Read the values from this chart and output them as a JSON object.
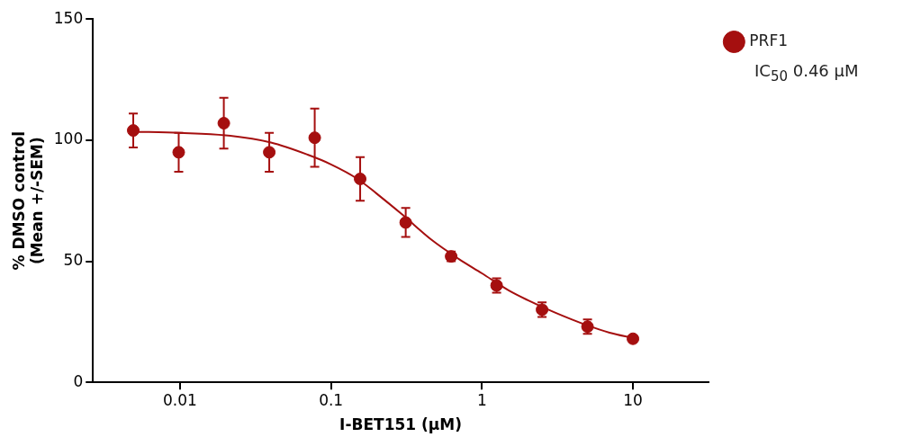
{
  "chart_data": {
    "type": "scatter",
    "xlabel": "I-BET151 (μM)",
    "ylabel": "% DMSO control\n(Mean +/-SEM)",
    "log": "x",
    "xlim": [
      0.00265,
      31.6
    ],
    "xticks": [
      0.01,
      0.1,
      1,
      10
    ],
    "ylim": [
      0,
      150
    ],
    "yticks": [
      0,
      50,
      100,
      150
    ],
    "legend": "right",
    "annotations": [
      "IC$_{50}$ 0.46 μM"
    ],
    "series": [
      {
        "name": "PRF1",
        "marker": "circle",
        "color": "#a50f0f",
        "x": [
          0.0049,
          0.0098,
          0.0195,
          0.039,
          0.078,
          0.156,
          0.3125,
          0.625,
          1.25,
          2.5,
          5,
          10
        ],
        "values": [
          104,
          95,
          107,
          95,
          101,
          84,
          66,
          52,
          40,
          30,
          23,
          18
        ],
        "errors": [
          7,
          8,
          10.5,
          8,
          12,
          9,
          6,
          2,
          3,
          3,
          3,
          1
        ]
      },
      {
        "type": "line",
        "marker": "none",
        "color": "#a50f0f",
        "x": [
          0.0049,
          0.01,
          0.02,
          0.04,
          0.07,
          0.1,
          0.15,
          0.2,
          0.3,
          0.46,
          0.7,
          1,
          1.5,
          2,
          3,
          5,
          7,
          10
        ],
        "values": [
          103.5,
          103,
          102,
          99,
          94,
          90,
          84,
          78,
          69,
          59,
          51,
          45,
          38,
          34,
          29,
          23.5,
          20.5,
          18.3
        ]
      }
    ]
  }
}
